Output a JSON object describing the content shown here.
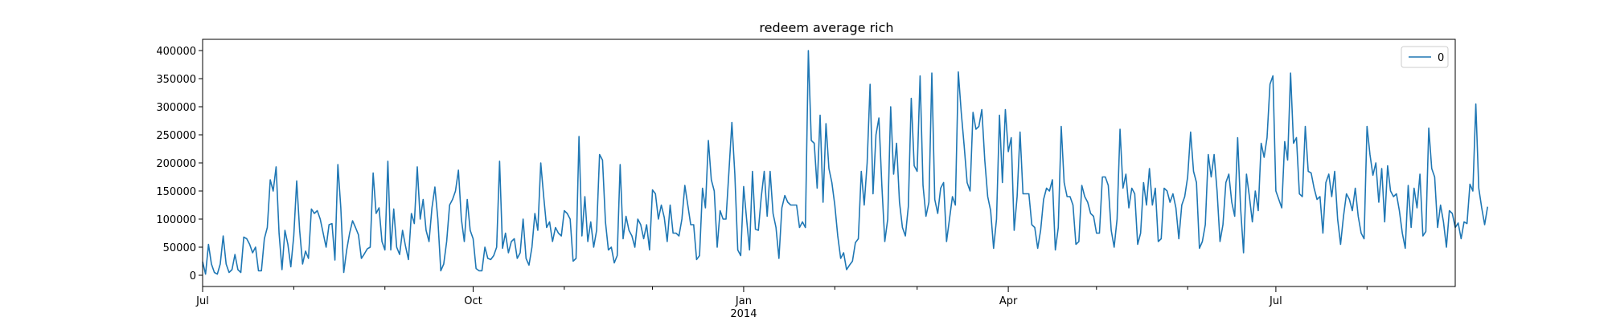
{
  "chart_data": {
    "type": "line",
    "title": "redeem average rich",
    "xlabel": "",
    "ylabel": "",
    "xlim": [
      "2013-07-01",
      "2014-08-31"
    ],
    "ylim": [
      -20000,
      420000
    ],
    "grid": false,
    "legend_position": "top-right",
    "series_color": "#1f77b4",
    "x_ticks": [
      {
        "date": "2013-07-01",
        "label": "Jul",
        "sublabel": ""
      },
      {
        "date": "2013-10-01",
        "label": "Oct",
        "sublabel": ""
      },
      {
        "date": "2014-01-01",
        "label": "Jan",
        "sublabel": "2014"
      },
      {
        "date": "2014-04-01",
        "label": "Apr",
        "sublabel": ""
      },
      {
        "date": "2014-07-01",
        "label": "Jul",
        "sublabel": ""
      }
    ],
    "x_minor_ticks": [
      "2013-08-01",
      "2013-09-01",
      "2013-11-01",
      "2013-12-01",
      "2014-02-01",
      "2014-03-01",
      "2014-05-01",
      "2014-06-01",
      "2014-08-01"
    ],
    "y_ticks": [
      0,
      50000,
      100000,
      150000,
      200000,
      250000,
      300000,
      350000,
      400000
    ],
    "y_tick_labels": [
      "0",
      "50000",
      "100000",
      "150000",
      "200000",
      "250000",
      "300000",
      "350000",
      "400000"
    ],
    "x_start": "2013-07-01",
    "series": [
      {
        "name": "0",
        "values": [
          24000,
          2000,
          55000,
          20000,
          5000,
          2000,
          20000,
          70000,
          20000,
          5000,
          10000,
          37000,
          10000,
          5000,
          68000,
          65000,
          55000,
          40000,
          50000,
          8000,
          8000,
          65000,
          85000,
          170000,
          150000,
          193000,
          75000,
          10000,
          80000,
          55000,
          15000,
          70000,
          168000,
          80000,
          20000,
          43000,
          30000,
          118000,
          110000,
          115000,
          100000,
          75000,
          50000,
          90000,
          92000,
          27000,
          197000,
          120000,
          5000,
          45000,
          75000,
          97000,
          85000,
          72000,
          30000,
          38000,
          47000,
          50000,
          182000,
          110000,
          120000,
          60000,
          45000,
          203000,
          45000,
          118000,
          50000,
          37000,
          80000,
          52000,
          28000,
          110000,
          92000,
          193000,
          100000,
          135000,
          80000,
          60000,
          120000,
          157000,
          100000,
          8000,
          20000,
          60000,
          125000,
          135000,
          150000,
          187000,
          100000,
          60000,
          135000,
          80000,
          65000,
          12000,
          8000,
          8000,
          50000,
          30000,
          28000,
          35000,
          50000,
          203000,
          48000,
          75000,
          40000,
          60000,
          65000,
          30000,
          40000,
          100000,
          30000,
          18000,
          50000,
          110000,
          80000,
          200000,
          140000,
          85000,
          95000,
          60000,
          85000,
          75000,
          70000,
          115000,
          110000,
          100000,
          25000,
          30000,
          247000,
          70000,
          140000,
          60000,
          95000,
          50000,
          80000,
          215000,
          205000,
          95000,
          45000,
          50000,
          22000,
          35000,
          197000,
          65000,
          105000,
          80000,
          70000,
          50000,
          100000,
          90000,
          65000,
          90000,
          45000,
          152000,
          145000,
          100000,
          125000,
          103000,
          60000,
          125000,
          75000,
          75000,
          70000,
          100000,
          160000,
          125000,
          90000,
          90000,
          28000,
          35000,
          155000,
          120000,
          240000,
          170000,
          150000,
          50000,
          115000,
          100000,
          100000,
          185000,
          272000,
          180000,
          45000,
          35000,
          158000,
          100000,
          45000,
          185000,
          82000,
          80000,
          140000,
          185000,
          105000,
          185000,
          110000,
          85000,
          30000,
          120000,
          142000,
          130000,
          125000,
          125000,
          125000,
          85000,
          95000,
          85000,
          400000,
          240000,
          235000,
          155000,
          285000,
          130000,
          270000,
          190000,
          165000,
          125000,
          70000,
          30000,
          40000,
          10000,
          18000,
          25000,
          58000,
          65000,
          185000,
          125000,
          200000,
          340000,
          145000,
          250000,
          280000,
          160000,
          60000,
          100000,
          300000,
          180000,
          235000,
          130000,
          85000,
          70000,
          122000,
          315000,
          195000,
          185000,
          355000,
          160000,
          105000,
          130000,
          360000,
          135000,
          110000,
          155000,
          165000,
          60000,
          100000,
          140000,
          125000,
          362000,
          290000,
          230000,
          165000,
          150000,
          290000,
          260000,
          265000,
          295000,
          205000,
          140000,
          115000,
          48000,
          100000,
          285000,
          165000,
          295000,
          220000,
          245000,
          80000,
          140000,
          255000,
          145000,
          145000,
          145000,
          90000,
          85000,
          48000,
          80000,
          135000,
          155000,
          150000,
          170000,
          45000,
          85000,
          265000,
          165000,
          140000,
          140000,
          125000,
          55000,
          60000,
          160000,
          140000,
          130000,
          110000,
          105000,
          75000,
          75000,
          175000,
          175000,
          160000,
          80000,
          50000,
          100000,
          260000,
          155000,
          180000,
          120000,
          155000,
          145000,
          55000,
          75000,
          165000,
          125000,
          190000,
          125000,
          155000,
          60000,
          65000,
          155000,
          150000,
          130000,
          145000,
          120000,
          65000,
          125000,
          140000,
          175000,
          255000,
          185000,
          165000,
          48000,
          60000,
          90000,
          215000,
          175000,
          215000,
          150000,
          60000,
          90000,
          165000,
          180000,
          130000,
          105000,
          245000,
          120000,
          40000,
          180000,
          140000,
          95000,
          150000,
          115000,
          235000,
          210000,
          245000,
          340000,
          355000,
          150000,
          135000,
          120000,
          238000,
          205000,
          360000,
          235000,
          245000,
          145000,
          140000,
          265000,
          185000,
          182000,
          155000,
          135000,
          140000,
          75000,
          165000,
          180000,
          140000,
          185000,
          100000,
          55000,
          105000,
          145000,
          135000,
          115000,
          155000,
          105000,
          75000,
          65000,
          265000,
          215000,
          178000,
          200000,
          130000,
          190000,
          95000,
          195000,
          150000,
          140000,
          145000,
          115000,
          75000,
          48000,
          160000,
          85000,
          155000,
          120000,
          180000,
          70000,
          78000,
          262000,
          190000,
          175000,
          85000,
          125000,
          95000,
          50000,
          115000,
          110000,
          85000,
          93000,
          65000,
          95000,
          92000,
          162000,
          150000,
          305000,
          155000,
          120000,
          90000,
          122000
        ]
      }
    ]
  }
}
